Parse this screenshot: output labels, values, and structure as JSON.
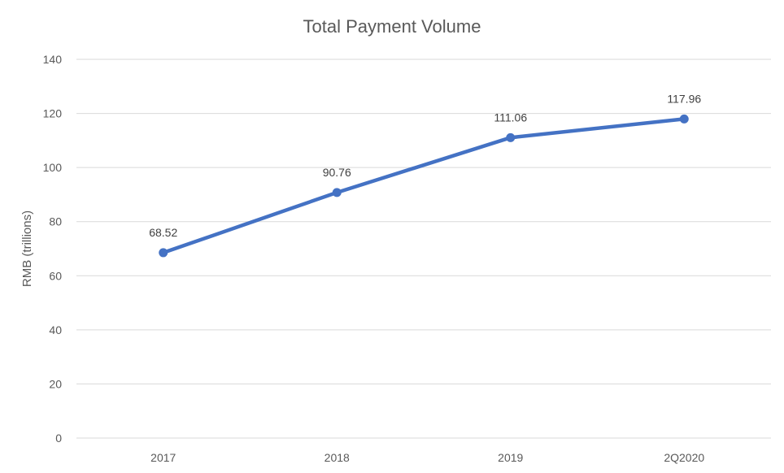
{
  "chart_data": {
    "type": "line",
    "title": "Total Payment Volume",
    "xlabel": "",
    "ylabel": "RMB (trillions)",
    "categories": [
      "2017",
      "2018",
      "2019",
      "2Q2020"
    ],
    "series": [
      {
        "values": [
          68.52,
          90.76,
          111.06,
          117.96
        ],
        "data_labels": [
          "68.52",
          "90.76",
          "111.06",
          "117.96"
        ]
      }
    ],
    "ylim": [
      0,
      140
    ],
    "yticks": [
      0,
      20,
      40,
      60,
      80,
      100,
      120,
      140
    ],
    "ytick_labels": [
      "0",
      "20",
      "40",
      "60",
      "80",
      "100",
      "120",
      "140"
    ],
    "grid": "horizontal",
    "legend": "none",
    "colors": {
      "line": "#4472C4",
      "grid": "#D9D9D9",
      "text": "#595959",
      "data_label": "#404040"
    }
  }
}
